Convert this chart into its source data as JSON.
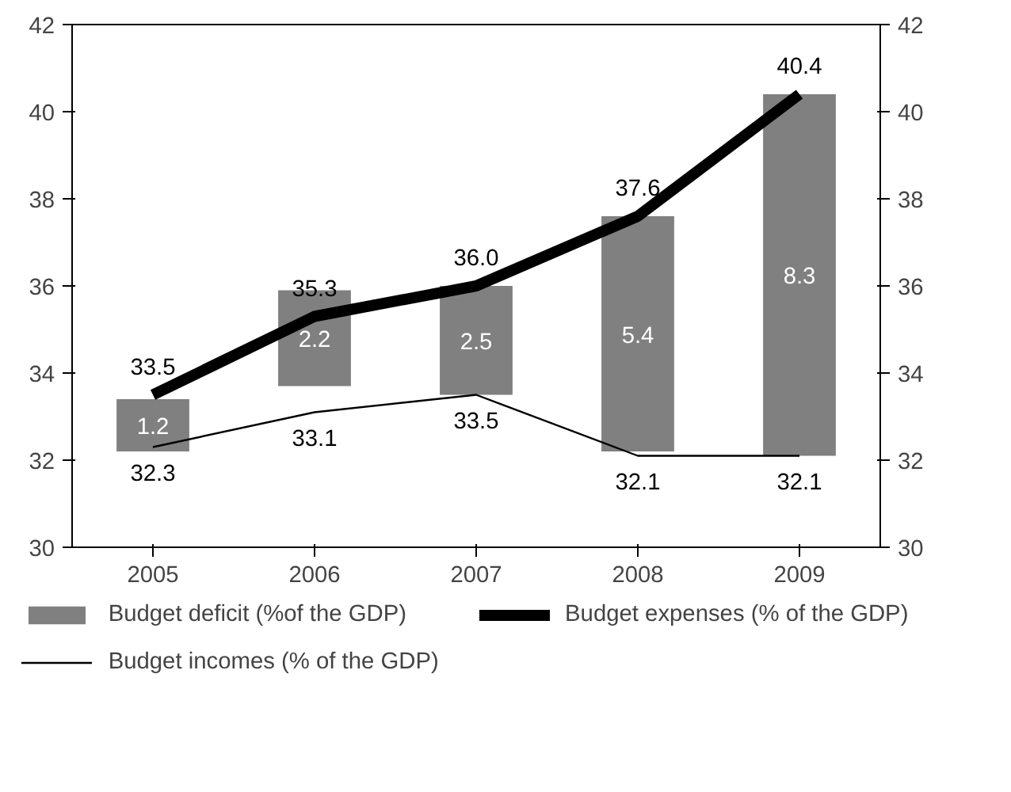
{
  "chart_data": {
    "type": "bar",
    "categories": [
      "2005",
      "2006",
      "2007",
      "2008",
      "2009"
    ],
    "series": [
      {
        "name": "Budget deficit (%of the GDP)",
        "color": "#808080",
        "values": [
          1.2,
          2.2,
          2.5,
          5.4,
          8.3
        ],
        "base": [
          32.2,
          33.7,
          33.5,
          32.2,
          32.1
        ]
      },
      {
        "name": "Budget expenses (% of the GDP)",
        "type": "line",
        "color": "#000000",
        "values": [
          33.5,
          35.3,
          36.0,
          37.6,
          40.4
        ],
        "value_labels": [
          "33.5",
          "35.3",
          "36.0",
          "37.6",
          "40.4"
        ]
      },
      {
        "name": "Budget incomes (% of the GDP)",
        "type": "line",
        "color": "#000000",
        "values": [
          32.3,
          33.1,
          33.5,
          32.1,
          32.1
        ]
      }
    ],
    "ylim": [
      30,
      42
    ],
    "yticks": [
      30,
      32,
      34,
      36,
      38,
      40,
      42
    ],
    "y2lim": [
      30,
      42
    ],
    "y2ticks": [
      30,
      32,
      34,
      36,
      38,
      40,
      42
    ],
    "data_labels": true,
    "legend": "bottom",
    "grid": false
  }
}
